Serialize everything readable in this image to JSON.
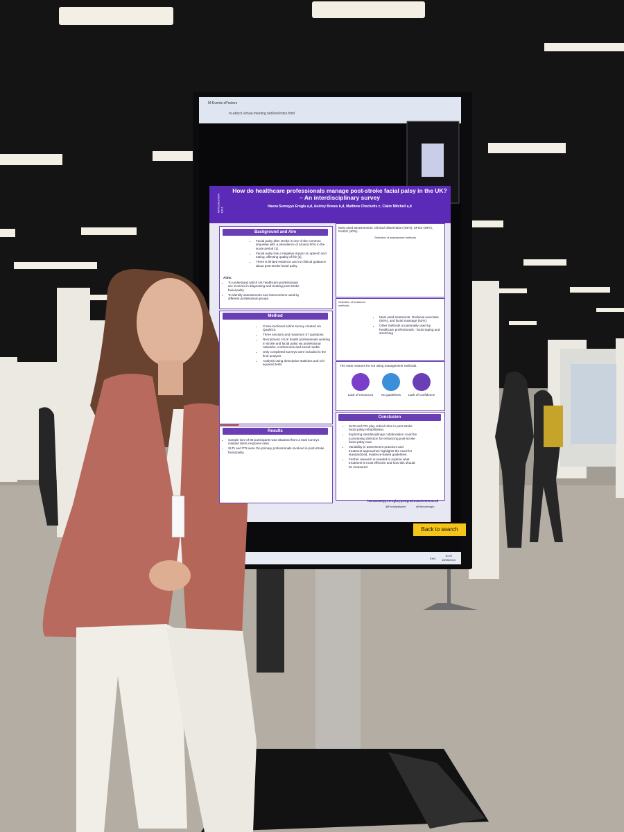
{
  "browser": {
    "tab": "M-Events ePosters",
    "url": "m-attach.virtual-meeting.net/live/index.html"
  },
  "poster": {
    "logo": "MANCHESTER 1824",
    "title": "How do healthcare professionals manage post-stroke facial palsy in the UK? – An interdisciplinary survey",
    "authors": "Havva Sumeyye Eroglu a,d, Audrey Bowes b,d, Matthew Checketts c, Claire Mitchell a,d",
    "background": {
      "header": "Background and Aim",
      "bullets": [
        "Facial palsy after stroke is one of the common sequelae with a prevalence of around 50% in the acute period [1].",
        "Facial palsy has a negative impact on speech and eating, affecting quality of life [2].",
        "There is limited evidence and no clinical guidance about post-stroke facial palsy."
      ],
      "aims_label": "Aims:",
      "aims": [
        "To understand which UK healthcare professionals are involved in diagnosing and treating post-stroke facial palsy.",
        "To identify assessments and interventions used by different professional groups."
      ]
    },
    "method": {
      "header": "Method",
      "bullets": [
        "Cross-sectional online survey created via Qualtrics.",
        "Three sections and maximum 57 questions",
        "Recruitment of UK health professionals working in stroke and facial palsy via professional networks, conferences and social media.",
        "Only completed surveys were included in the final analysis.",
        "Analysis using descriptive statistics and Chi-squared tests"
      ]
    },
    "results": {
      "header": "Results",
      "bullets": [
        "Sample size of 96 participants was obtained from a total surveys initiated (64% response rate).",
        "SLTs and PTs were the primary professionals involved in post-stroke facial palsy."
      ]
    },
    "assessments": "Most used assessments: Clinical Observation (84%), SFGS (40%), NIHSS (40%).",
    "assessment_chart_title": "Selection of assessment methods",
    "treatment_chart_title": "Selection of treatment methods",
    "treatments": [
      "Most used treatments: Orofacial exercises (60%), and facial massage (52%).",
      "Other methods occasionally used by healthcare professionals - facial taping and stretching"
    ],
    "reasons_title": "The main reasons for not using management methods.",
    "reasons": [
      "Lack of resources",
      "No guidelines",
      "Lack of confidence"
    ],
    "conclusion": {
      "header": "Conclusion",
      "bullets": [
        "SLTs and PTs play critical roles in post-stroke facial palsy rehabilitation.",
        "Exploring interdisciplinary collaboration could be a promising direction for enhancing post-stroke facial palsy care.",
        "Variability in assessment practices and treatment approaches highlights the need for standardized, evidence-based guidelines.",
        "Further research is needed to explore what treatment is most effective and how this should be measured."
      ]
    },
    "contact": "havvasumeyye.eroglu@postgrad.manchester.ac.uk",
    "handles": [
      "@Facialpalsysm",
      "@Havvaeroglu"
    ]
  },
  "screen": {
    "back_button": "Back to search",
    "language": "ENG",
    "time": "10:20",
    "date": "15/05/2024"
  }
}
